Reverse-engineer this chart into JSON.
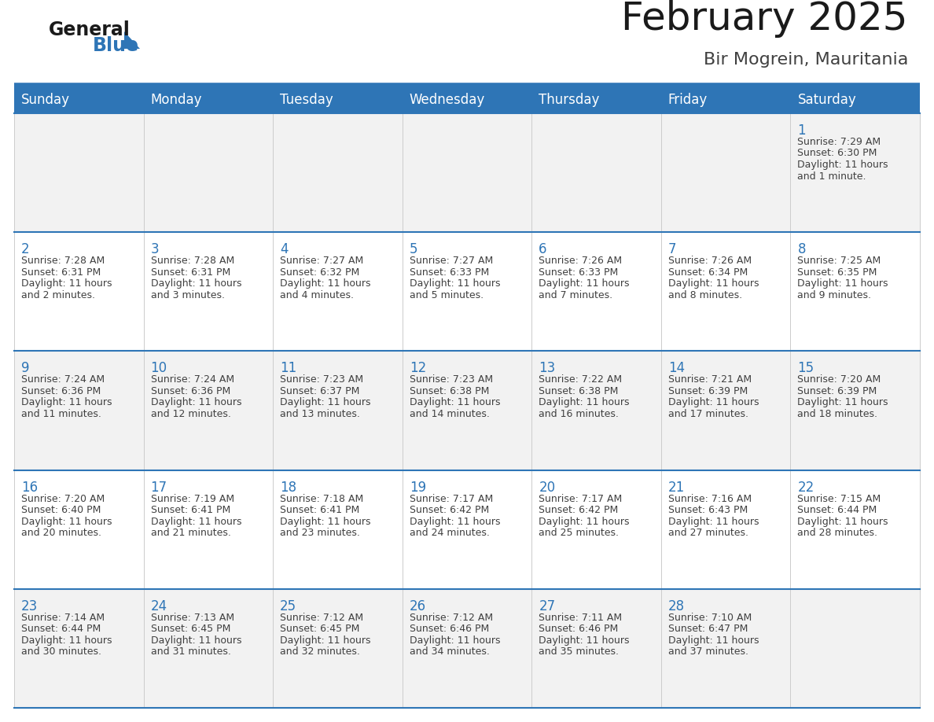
{
  "title": "February 2025",
  "subtitle": "Bir Mogrein, Mauritania",
  "days_of_week": [
    "Sunday",
    "Monday",
    "Tuesday",
    "Wednesday",
    "Thursday",
    "Friday",
    "Saturday"
  ],
  "header_bg": "#2E75B6",
  "header_text": "#FFFFFF",
  "text_color": "#404040",
  "border_color": "#2E75B6",
  "row_border_color": "#2E75B6",
  "title_color": "#1a1a1a",
  "subtitle_color": "#404040",
  "num_color": "#2E75B6",
  "logo_general_color": "#1a1a1a",
  "logo_blue_color": "#2E75B6",
  "cell_bg_odd": "#F2F2F2",
  "cell_bg_even": "#FFFFFF",
  "calendar_data": [
    [
      null,
      null,
      null,
      null,
      null,
      null,
      {
        "day": 1,
        "sunrise": "7:29 AM",
        "sunset": "6:30 PM",
        "daylight": "11 hours\nand 1 minute."
      }
    ],
    [
      {
        "day": 2,
        "sunrise": "7:28 AM",
        "sunset": "6:31 PM",
        "daylight": "11 hours\nand 2 minutes."
      },
      {
        "day": 3,
        "sunrise": "7:28 AM",
        "sunset": "6:31 PM",
        "daylight": "11 hours\nand 3 minutes."
      },
      {
        "day": 4,
        "sunrise": "7:27 AM",
        "sunset": "6:32 PM",
        "daylight": "11 hours\nand 4 minutes."
      },
      {
        "day": 5,
        "sunrise": "7:27 AM",
        "sunset": "6:33 PM",
        "daylight": "11 hours\nand 5 minutes."
      },
      {
        "day": 6,
        "sunrise": "7:26 AM",
        "sunset": "6:33 PM",
        "daylight": "11 hours\nand 7 minutes."
      },
      {
        "day": 7,
        "sunrise": "7:26 AM",
        "sunset": "6:34 PM",
        "daylight": "11 hours\nand 8 minutes."
      },
      {
        "day": 8,
        "sunrise": "7:25 AM",
        "sunset": "6:35 PM",
        "daylight": "11 hours\nand 9 minutes."
      }
    ],
    [
      {
        "day": 9,
        "sunrise": "7:24 AM",
        "sunset": "6:36 PM",
        "daylight": "11 hours\nand 11 minutes."
      },
      {
        "day": 10,
        "sunrise": "7:24 AM",
        "sunset": "6:36 PM",
        "daylight": "11 hours\nand 12 minutes."
      },
      {
        "day": 11,
        "sunrise": "7:23 AM",
        "sunset": "6:37 PM",
        "daylight": "11 hours\nand 13 minutes."
      },
      {
        "day": 12,
        "sunrise": "7:23 AM",
        "sunset": "6:38 PM",
        "daylight": "11 hours\nand 14 minutes."
      },
      {
        "day": 13,
        "sunrise": "7:22 AM",
        "sunset": "6:38 PM",
        "daylight": "11 hours\nand 16 minutes."
      },
      {
        "day": 14,
        "sunrise": "7:21 AM",
        "sunset": "6:39 PM",
        "daylight": "11 hours\nand 17 minutes."
      },
      {
        "day": 15,
        "sunrise": "7:20 AM",
        "sunset": "6:39 PM",
        "daylight": "11 hours\nand 18 minutes."
      }
    ],
    [
      {
        "day": 16,
        "sunrise": "7:20 AM",
        "sunset": "6:40 PM",
        "daylight": "11 hours\nand 20 minutes."
      },
      {
        "day": 17,
        "sunrise": "7:19 AM",
        "sunset": "6:41 PM",
        "daylight": "11 hours\nand 21 minutes."
      },
      {
        "day": 18,
        "sunrise": "7:18 AM",
        "sunset": "6:41 PM",
        "daylight": "11 hours\nand 23 minutes."
      },
      {
        "day": 19,
        "sunrise": "7:17 AM",
        "sunset": "6:42 PM",
        "daylight": "11 hours\nand 24 minutes."
      },
      {
        "day": 20,
        "sunrise": "7:17 AM",
        "sunset": "6:42 PM",
        "daylight": "11 hours\nand 25 minutes."
      },
      {
        "day": 21,
        "sunrise": "7:16 AM",
        "sunset": "6:43 PM",
        "daylight": "11 hours\nand 27 minutes."
      },
      {
        "day": 22,
        "sunrise": "7:15 AM",
        "sunset": "6:44 PM",
        "daylight": "11 hours\nand 28 minutes."
      }
    ],
    [
      {
        "day": 23,
        "sunrise": "7:14 AM",
        "sunset": "6:44 PM",
        "daylight": "11 hours\nand 30 minutes."
      },
      {
        "day": 24,
        "sunrise": "7:13 AM",
        "sunset": "6:45 PM",
        "daylight": "11 hours\nand 31 minutes."
      },
      {
        "day": 25,
        "sunrise": "7:12 AM",
        "sunset": "6:45 PM",
        "daylight": "11 hours\nand 32 minutes."
      },
      {
        "day": 26,
        "sunrise": "7:12 AM",
        "sunset": "6:46 PM",
        "daylight": "11 hours\nand 34 minutes."
      },
      {
        "day": 27,
        "sunrise": "7:11 AM",
        "sunset": "6:46 PM",
        "daylight": "11 hours\nand 35 minutes."
      },
      {
        "day": 28,
        "sunrise": "7:10 AM",
        "sunset": "6:47 PM",
        "daylight": "11 hours\nand 37 minutes."
      },
      null
    ]
  ]
}
